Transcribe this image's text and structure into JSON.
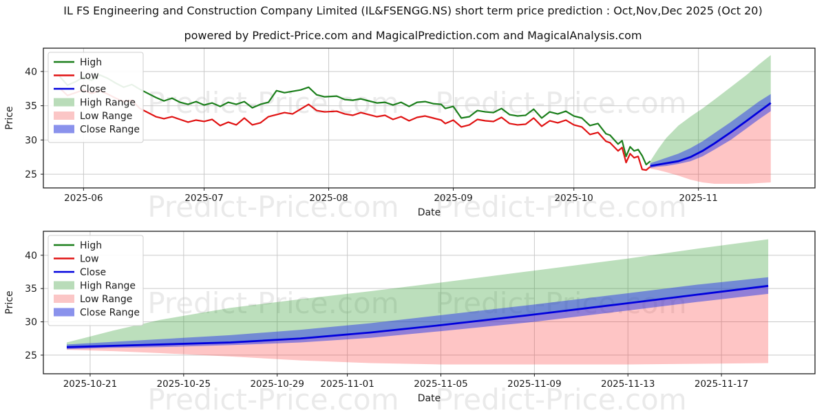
{
  "header": {
    "title": "IL FS Engineering and Construction Company Limited (IL&FSENGG.NS) short term price prediction : Oct,Nov,Dec 2025 (Oct 20)",
    "subtitle": "powered by Predict-Price.com and MagicalPrediction.com and MagicalAnalysis.com"
  },
  "watermark": {
    "text": "Predict-Price.com"
  },
  "colors": {
    "high_line": "#1a7e1a",
    "low_line": "#e01212",
    "close_line": "#0000dd",
    "high_range_fill": "rgba(34,150,34,0.30)",
    "low_range_fill": "rgba(250,45,45,0.28)",
    "close_range_fill": "rgba(55,70,230,0.55)",
    "high_range_swatch": "#b9dcb9",
    "low_range_swatch": "#fbc6c6",
    "close_range_swatch": "#8a92ec",
    "grid": "#c9c9c9",
    "axis": "#1a1a1a",
    "watermark_fill": "rgba(90,90,90,0.13)"
  },
  "legend": {
    "items": [
      {
        "label": "High",
        "swatch": "line",
        "color": "#1a7e1a"
      },
      {
        "label": "Low",
        "swatch": "line",
        "color": "#e01212"
      },
      {
        "label": "Close",
        "swatch": "line",
        "color": "#0000dd"
      },
      {
        "label": "High Range",
        "swatch": "fill",
        "color": "#b9dcb9"
      },
      {
        "label": "Low Range",
        "swatch": "fill",
        "color": "#fbc6c6"
      },
      {
        "label": "Close Range",
        "swatch": "fill",
        "color": "#8a92ec"
      }
    ]
  },
  "forecast": {
    "note": "day offsets measured from 2025-10-20 (forecast start)",
    "day_offsets": [
      0,
      2,
      4,
      7,
      10,
      13,
      16,
      20,
      24,
      27,
      30
    ],
    "close": [
      26.2,
      26.4,
      26.6,
      26.9,
      27.5,
      28.4,
      29.5,
      31.1,
      32.8,
      34.1,
      35.4
    ],
    "close_upper": [
      26.6,
      27.0,
      27.4,
      28.0,
      28.8,
      29.8,
      31.0,
      32.6,
      34.3,
      35.6,
      36.7
    ],
    "close_lower": [
      25.9,
      26.1,
      26.2,
      26.5,
      26.9,
      27.6,
      28.6,
      30.0,
      31.7,
      33.0,
      34.2
    ],
    "high_upper": [
      26.9,
      28.7,
      30.3,
      32.1,
      33.4,
      34.6,
      35.9,
      37.7,
      39.5,
      41.0,
      42.4
    ],
    "low_lower": [
      25.8,
      25.6,
      25.3,
      24.8,
      24.2,
      23.8,
      23.6,
      23.6,
      23.6,
      23.7,
      23.8
    ]
  },
  "chart_data": [
    {
      "id": "main",
      "type": "line",
      "title": "",
      "xlabel": "Date",
      "ylabel": "Price",
      "x_unit": "days since 2025-05-22",
      "x_domain": [
        0,
        192
      ],
      "ylim": [
        23.0,
        43.4
      ],
      "y_ticks": [
        25,
        30,
        35,
        40
      ],
      "x_ticks": [
        {
          "label": "2025-06",
          "day": 10
        },
        {
          "label": "2025-07",
          "day": 40
        },
        {
          "label": "2025-08",
          "day": 71
        },
        {
          "label": "2025-09",
          "day": 102
        },
        {
          "label": "2025-10",
          "day": 132
        },
        {
          "label": "2025-11",
          "day": 163
        }
      ],
      "grid": true,
      "legend_position": "upper-left",
      "forecast_start_day": 151,
      "history_note": "triples of [day, high, low]",
      "history": [
        [
          4,
          39.3,
          37.6
        ],
        [
          6,
          38.0,
          36.5
        ],
        [
          8,
          38.5,
          36.9
        ],
        [
          10,
          39.2,
          37.3
        ],
        [
          12,
          38.7,
          36.8
        ],
        [
          14,
          39.5,
          37.2
        ],
        [
          16,
          39.0,
          36.7
        ],
        [
          18,
          38.3,
          36.1
        ],
        [
          20,
          37.7,
          35.6
        ],
        [
          22,
          38.1,
          35.8
        ],
        [
          24,
          37.4,
          34.6
        ],
        [
          26,
          36.8,
          34.0
        ],
        [
          28,
          36.2,
          33.4
        ],
        [
          30,
          35.7,
          33.1
        ],
        [
          32,
          36.1,
          33.4
        ],
        [
          34,
          35.5,
          33.0
        ],
        [
          36,
          35.2,
          32.6
        ],
        [
          38,
          35.6,
          32.9
        ],
        [
          40,
          35.1,
          32.7
        ],
        [
          42,
          35.4,
          33.0
        ],
        [
          44,
          34.9,
          32.1
        ],
        [
          46,
          35.5,
          32.6
        ],
        [
          48,
          35.2,
          32.2
        ],
        [
          50,
          35.6,
          33.2
        ],
        [
          52,
          34.7,
          32.2
        ],
        [
          54,
          35.2,
          32.5
        ],
        [
          56,
          35.5,
          33.4
        ],
        [
          58,
          37.2,
          33.7
        ],
        [
          60,
          36.9,
          34.0
        ],
        [
          62,
          37.1,
          33.8
        ],
        [
          64,
          37.3,
          34.5
        ],
        [
          66,
          37.7,
          35.2
        ],
        [
          68,
          36.6,
          34.3
        ],
        [
          70,
          36.3,
          34.1
        ],
        [
          73,
          36.4,
          34.2
        ],
        [
          75,
          35.9,
          33.8
        ],
        [
          77,
          35.8,
          33.6
        ],
        [
          79,
          36.0,
          34.0
        ],
        [
          81,
          35.7,
          33.7
        ],
        [
          83,
          35.4,
          33.4
        ],
        [
          85,
          35.5,
          33.6
        ],
        [
          87,
          35.1,
          33.0
        ],
        [
          89,
          35.5,
          33.4
        ],
        [
          91,
          34.9,
          32.8
        ],
        [
          93,
          35.5,
          33.3
        ],
        [
          95,
          35.6,
          33.5
        ],
        [
          97,
          35.3,
          33.2
        ],
        [
          99,
          35.2,
          32.9
        ],
        [
          100,
          34.6,
          32.4
        ],
        [
          102,
          34.9,
          32.9
        ],
        [
          104,
          33.2,
          31.9
        ],
        [
          106,
          33.4,
          32.2
        ],
        [
          108,
          34.3,
          33.0
        ],
        [
          110,
          34.1,
          32.8
        ],
        [
          112,
          34.0,
          32.7
        ],
        [
          114,
          34.6,
          33.3
        ],
        [
          116,
          33.7,
          32.4
        ],
        [
          118,
          33.5,
          32.2
        ],
        [
          120,
          33.6,
          32.3
        ],
        [
          122,
          34.5,
          33.2
        ],
        [
          124,
          33.2,
          32.0
        ],
        [
          126,
          34.1,
          32.8
        ],
        [
          128,
          33.8,
          32.5
        ],
        [
          130,
          34.2,
          32.9
        ],
        [
          132,
          33.5,
          32.2
        ],
        [
          134,
          33.2,
          31.9
        ],
        [
          136,
          32.1,
          30.8
        ],
        [
          138,
          32.4,
          31.1
        ],
        [
          140,
          30.9,
          29.8
        ],
        [
          141,
          30.7,
          29.6
        ],
        [
          143,
          29.4,
          28.4
        ],
        [
          144,
          29.9,
          28.9
        ],
        [
          145,
          27.6,
          26.7
        ],
        [
          146,
          29.0,
          28.0
        ],
        [
          147,
          28.4,
          27.4
        ],
        [
          148,
          28.6,
          27.6
        ],
        [
          149,
          27.7,
          25.7
        ],
        [
          150,
          26.4,
          25.6
        ],
        [
          151,
          26.9,
          26.1
        ]
      ]
    },
    {
      "id": "zoom",
      "type": "line",
      "title": "",
      "xlabel": "Date",
      "ylabel": "Price",
      "x_unit": "days since 2025-10-19",
      "x_domain": [
        0,
        33
      ],
      "ylim": [
        22.2,
        43.6
      ],
      "y_ticks": [
        25,
        30,
        35,
        40
      ],
      "x_ticks": [
        {
          "label": "2025-10-21",
          "day": 2
        },
        {
          "label": "2025-10-25",
          "day": 6
        },
        {
          "label": "2025-10-29",
          "day": 10
        },
        {
          "label": "2025-11-01",
          "day": 13
        },
        {
          "label": "2025-11-05",
          "day": 17
        },
        {
          "label": "2025-11-09",
          "day": 21
        },
        {
          "label": "2025-11-13",
          "day": 25
        },
        {
          "label": "2025-11-17",
          "day": 29
        }
      ],
      "grid": true,
      "legend_position": "upper-left",
      "forecast_start_day": 1,
      "history": []
    }
  ]
}
